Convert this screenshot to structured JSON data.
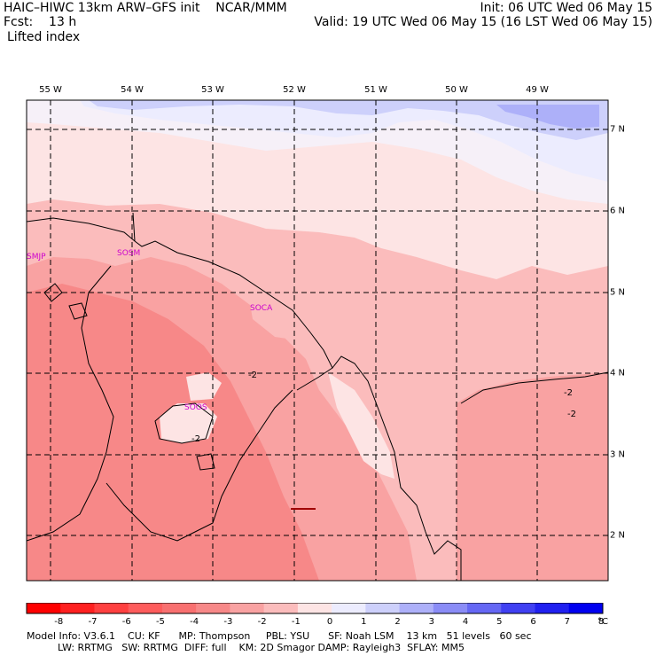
{
  "header": {
    "title": "HAIC–HIWC 13km ARW–GFS init    NCAR/MMM",
    "fcst": "Fcst:    13 h",
    "field": "Lifted index",
    "init": "Init: 06 UTC Wed 06 May 15",
    "valid": "Valid: 19 UTC Wed 06 May 15 (16 LST Wed 06 May 15)"
  },
  "map": {
    "lon_labels": [
      "55 W",
      "54 W",
      "53 W",
      "52 W",
      "51 W",
      "50 W",
      "49 W"
    ],
    "lat_labels": [
      "7 N",
      "6 N",
      "5 N",
      "4 N",
      "3 N",
      "2 N"
    ],
    "stations": [
      "SMJP",
      "SOSM",
      "SOCA",
      "SOOS"
    ],
    "contour_labels": [
      "-2",
      "-2",
      "-2",
      "-2"
    ]
  },
  "colorbar": {
    "ticks": [
      "-8",
      "-7",
      "-6",
      "-5",
      "-4",
      "-3",
      "-2",
      "-1",
      "0",
      "1",
      "2",
      "3",
      "4",
      "5",
      "6",
      "7",
      "8"
    ],
    "unit": "°C",
    "colors": [
      "#ff0000",
      "#ff2020",
      "#ff4040",
      "#fe5c5c",
      "#f87070",
      "#f78888",
      "#f9a2a2",
      "#fbbcbc",
      "#fde4e4",
      "#ececfe",
      "#cdd0fb",
      "#adb0f9",
      "#8a8cf6",
      "#6567f4",
      "#4040f2",
      "#2020f0",
      "#0000f0"
    ]
  },
  "footer": {
    "line1": "Model Info: V3.6.1    CU: KF      MP: Thompson     PBL: YSU      SF: Noah LSM    13 km   51 levels   60 sec",
    "line2": "          LW: RRTMG   SW: RRTMG  DIFF: full    KM: 2D Smagor DAMP: Rayleigh3  SFLAY: MM5"
  }
}
